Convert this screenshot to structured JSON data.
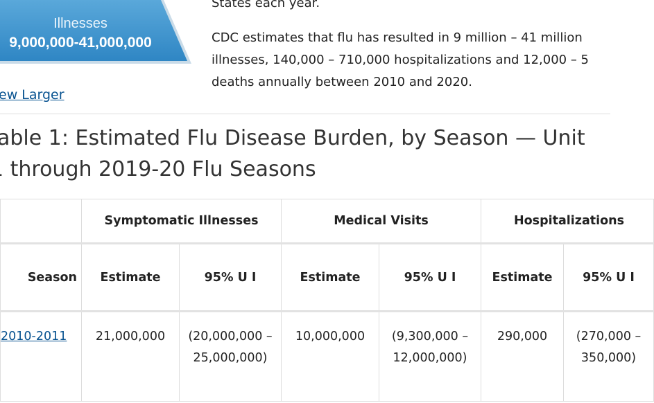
{
  "image": {
    "label": "Illnesses",
    "range": "9,000,000-41,000,000"
  },
  "intro": "States each year.",
  "paragraph_lines": [
    "CDC estimates that flu has resulted in 9 million – 41 million",
    "illnesses, 140,000 – 710,000 hospitalizations and 12,000 – 5",
    "deaths annually  between 2010 and 2020."
  ],
  "link": "ew Larger",
  "heading_lines": [
    "able 1: Estimated Flu Disease Burden, by Season — Unit",
    "1 through 2019-20 Flu Seasons"
  ],
  "table": {
    "groups": [
      "Symptomatic Illnesses",
      "Medical Visits",
      "Hospitalizations"
    ],
    "columns": [
      "Season",
      "Estimate",
      "95% U I",
      "Estimate",
      "95% U I",
      "Estimate",
      "95% U I"
    ],
    "rows": [
      [
        "2010-2011",
        "21,000,000",
        "(20,000,000 – 25,000,000)",
        "10,000,000",
        "(9,300,000 – 12,000,000)",
        "290,000",
        "(270,000 – 350,000)"
      ]
    ]
  }
}
